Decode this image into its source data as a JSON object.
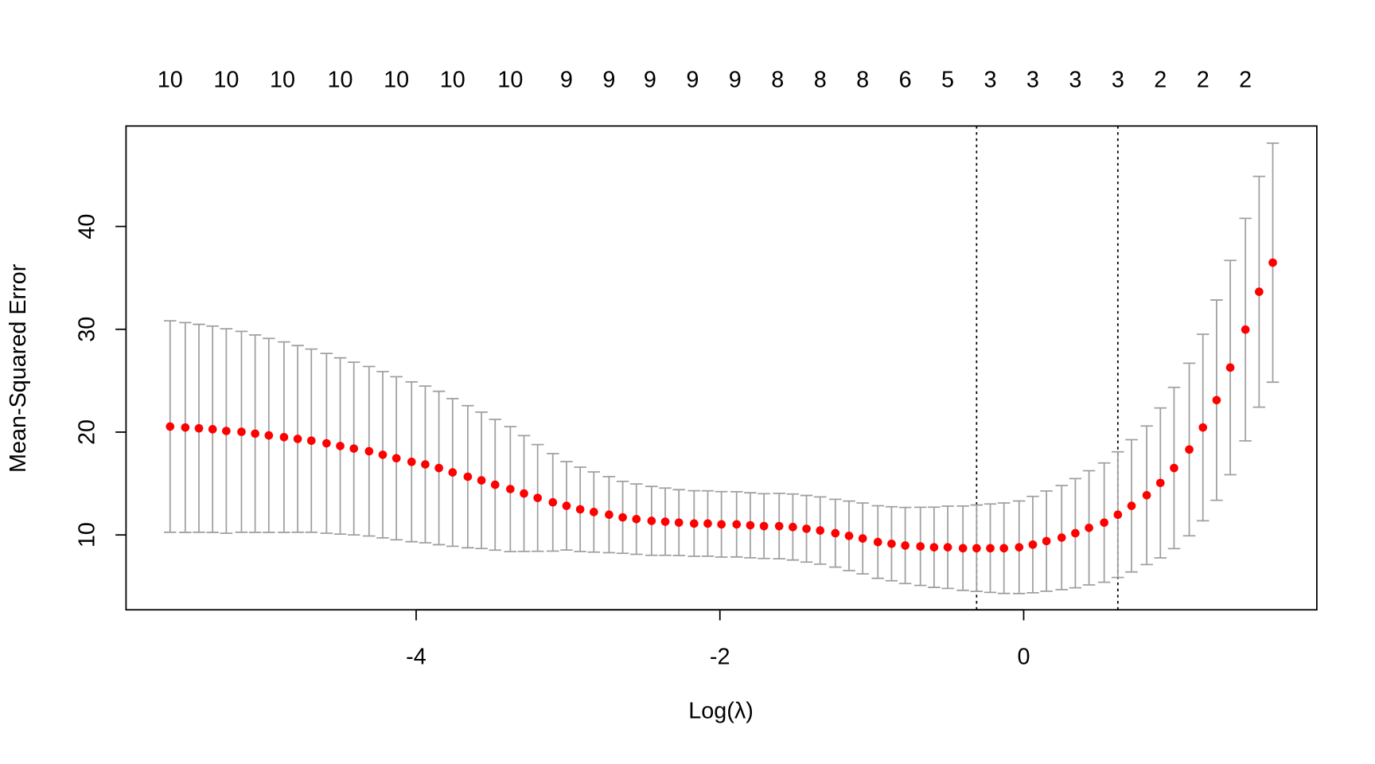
{
  "chart_data": {
    "type": "errorbar_scatter",
    "xlabel": "Log(λ)",
    "ylabel": "Mean-Squared Error",
    "x": [
      -5.62,
      -5.52,
      -5.43,
      -5.34,
      -5.25,
      -5.15,
      -5.06,
      -4.97,
      -4.87,
      -4.78,
      -4.69,
      -4.59,
      -4.5,
      -4.41,
      -4.31,
      -4.22,
      -4.13,
      -4.03,
      -3.94,
      -3.85,
      -3.76,
      -3.66,
      -3.57,
      -3.48,
      -3.38,
      -3.29,
      -3.2,
      -3.1,
      -3.01,
      -2.92,
      -2.83,
      -2.73,
      -2.64,
      -2.55,
      -2.45,
      -2.36,
      -2.27,
      -2.17,
      -2.08,
      -1.99,
      -1.89,
      -1.8,
      -1.71,
      -1.61,
      -1.52,
      -1.43,
      -1.34,
      -1.24,
      -1.15,
      -1.06,
      -0.96,
      -0.87,
      -0.78,
      -0.68,
      -0.59,
      -0.5,
      -0.4,
      -0.31,
      -0.22,
      -0.13,
      -0.03,
      0.06,
      0.15,
      0.25,
      0.34,
      0.43,
      0.53,
      0.62,
      0.71,
      0.81,
      0.9,
      0.99,
      1.09,
      1.18,
      1.27,
      1.36,
      1.46,
      1.55,
      1.64
    ],
    "values": [
      20.54,
      20.45,
      20.37,
      20.28,
      20.11,
      20.03,
      19.85,
      19.68,
      19.51,
      19.34,
      19.17,
      18.91,
      18.65,
      18.4,
      18.14,
      17.8,
      17.46,
      17.11,
      16.86,
      16.51,
      16.08,
      15.66,
      15.31,
      14.88,
      14.46,
      14.03,
      13.6,
      13.17,
      12.83,
      12.49,
      12.23,
      11.97,
      11.71,
      11.54,
      11.37,
      11.29,
      11.2,
      11.11,
      11.11,
      11.03,
      11.03,
      10.94,
      10.86,
      10.86,
      10.77,
      10.6,
      10.43,
      10.17,
      9.91,
      9.66,
      9.31,
      9.14,
      8.97,
      8.89,
      8.8,
      8.8,
      8.71,
      8.71,
      8.71,
      8.71,
      8.8,
      9.06,
      9.4,
      9.74,
      10.17,
      10.69,
      11.2,
      11.97,
      12.83,
      13.86,
      15.06,
      16.51,
      18.31,
      20.45,
      23.11,
      26.28,
      29.97,
      33.65,
      36.48
    ],
    "errors": [
      10.28,
      10.2,
      10.11,
      10.03,
      9.94,
      9.77,
      9.6,
      9.43,
      9.26,
      9.08,
      8.91,
      8.74,
      8.57,
      8.4,
      8.24,
      8.09,
      7.93,
      7.77,
      7.62,
      7.46,
      7.18,
      6.91,
      6.63,
      6.36,
      6.08,
      5.63,
      5.19,
      4.74,
      4.3,
      4.1,
      3.9,
      3.7,
      3.5,
      3.42,
      3.35,
      3.27,
      3.2,
      3.19,
      3.18,
      3.18,
      3.17,
      3.16,
      3.15,
      3.18,
      3.21,
      3.24,
      3.27,
      3.3,
      3.38,
      3.45,
      3.53,
      3.6,
      3.7,
      3.8,
      3.9,
      4.0,
      4.1,
      4.2,
      4.3,
      4.4,
      4.5,
      4.69,
      4.87,
      5.06,
      5.31,
      5.55,
      5.8,
      6.11,
      6.43,
      6.74,
      7.29,
      7.84,
      8.39,
      9.07,
      9.74,
      10.42,
      10.82,
      11.22,
      11.62
    ],
    "color": "#ff0000",
    "error_color": "#a0a0a0",
    "xlim": [
      -5.91,
      1.93
    ],
    "ylim": [
      2.72,
      49.77
    ],
    "xticks": [
      -4,
      -2,
      0
    ],
    "yticks": [
      10,
      20,
      30,
      40
    ],
    "vlines": [
      -0.31,
      0.62
    ],
    "top_ticks": [
      {
        "value": -5.62,
        "label": "10"
      },
      {
        "value": -5.25,
        "label": "10"
      },
      {
        "value": -4.88,
        "label": "10"
      },
      {
        "value": -4.5,
        "label": "10"
      },
      {
        "value": -4.13,
        "label": "10"
      },
      {
        "value": -3.76,
        "label": "10"
      },
      {
        "value": -3.38,
        "label": "10"
      },
      {
        "value": -3.01,
        "label": "9"
      },
      {
        "value": -2.73,
        "label": "9"
      },
      {
        "value": -2.46,
        "label": "9"
      },
      {
        "value": -2.18,
        "label": "9"
      },
      {
        "value": -1.9,
        "label": "9"
      },
      {
        "value": -1.62,
        "label": "8"
      },
      {
        "value": -1.34,
        "label": "8"
      },
      {
        "value": -1.06,
        "label": "8"
      },
      {
        "value": -0.78,
        "label": "6"
      },
      {
        "value": -0.5,
        "label": "5"
      },
      {
        "value": -0.22,
        "label": "3"
      },
      {
        "value": 0.06,
        "label": "3"
      },
      {
        "value": 0.34,
        "label": "3"
      },
      {
        "value": 0.62,
        "label": "3"
      },
      {
        "value": 0.9,
        "label": "2"
      },
      {
        "value": 1.18,
        "label": "2"
      },
      {
        "value": 1.46,
        "label": "2"
      }
    ]
  }
}
